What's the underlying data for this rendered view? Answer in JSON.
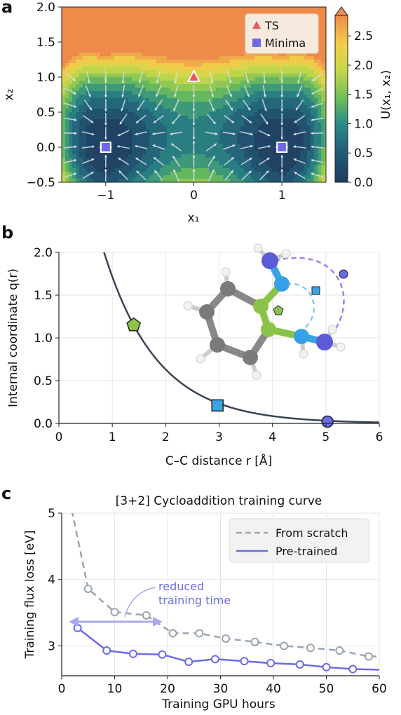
{
  "panels": {
    "a": "a",
    "b": "b",
    "c": "c"
  },
  "chart_data": [
    {
      "type": "heatmap",
      "panel": "a",
      "xlabel": "x₁",
      "ylabel": "x₂",
      "xlim": [
        -1.5,
        1.5
      ],
      "ylim": [
        -0.5,
        2.0
      ],
      "xticks": [
        "−1",
        "0",
        "1"
      ],
      "xtick_values": [
        -1,
        0,
        1
      ],
      "yticks": [
        "−0.5",
        "0.0",
        "0.5",
        "1.0",
        "1.5",
        "2.0"
      ],
      "ytick_values": [
        -0.5,
        0.0,
        0.5,
        1.0,
        1.5,
        2.0
      ],
      "colorbar": {
        "label": "U(x₁, x₂)",
        "range": [
          0.0,
          2.85
        ],
        "ticks": [
          "0.0",
          "0.5",
          "1.0",
          "1.5",
          "2.0",
          "2.5"
        ],
        "tick_values": [
          0.0,
          0.5,
          1.0,
          1.5,
          2.0,
          2.5
        ]
      },
      "markers": [
        {
          "name": "TS",
          "x": 0.0,
          "y": 1.0,
          "color": "#e8585f",
          "shape": "triangle"
        },
        {
          "name": "Minima",
          "x": -1.0,
          "y": 0.0,
          "color": "#6b6be8",
          "shape": "square"
        },
        {
          "name": "Minima",
          "x": 1.0,
          "y": 0.0,
          "color": "#6b6be8",
          "shape": "square"
        }
      ],
      "legend": {
        "position": "top-right",
        "entries": [
          "TS",
          "Minima"
        ]
      }
    },
    {
      "type": "line",
      "panel": "b",
      "xlabel": "C–C distance r [Å]",
      "ylabel": "Internal coordinate q(r)",
      "xlim": [
        0,
        6
      ],
      "ylim": [
        0,
        2.0
      ],
      "xticks": [
        "0",
        "1",
        "2",
        "3",
        "4",
        "5",
        "6"
      ],
      "yticks": [
        "0.0",
        "0.5",
        "1.0",
        "1.5",
        "2.0"
      ],
      "curve": "q(r) = exp(-(r - 1.4)) * 1.15",
      "points": [
        {
          "x": 1.4,
          "y": 1.15,
          "shape": "pentagon",
          "color": "#8bc34a"
        },
        {
          "x": 2.97,
          "y": 0.21,
          "shape": "square",
          "color": "#3aa3e3"
        },
        {
          "x": 5.03,
          "y": 0.02,
          "shape": "circle",
          "color": "#6b6be8"
        }
      ]
    },
    {
      "type": "line",
      "panel": "c",
      "title": "[3+2] Cycloaddition training curve",
      "xlabel": "Training GPU hours",
      "ylabel": "Training flux loss [eV]",
      "xlim": [
        0,
        60
      ],
      "ylim": [
        2.55,
        5.0
      ],
      "xticks": [
        "0",
        "10",
        "20",
        "30",
        "40",
        "50",
        "60"
      ],
      "yticks": [
        "3",
        "4",
        "5"
      ],
      "legend": {
        "position": "top-right"
      },
      "annotation": {
        "line1": "reduced",
        "line2": "training time"
      },
      "series": [
        {
          "name": "From scratch",
          "style": "dashed",
          "color": "#9aa5b1",
          "x": [
            1.5,
            5,
            10,
            16,
            21,
            26,
            31,
            36.5,
            42,
            47,
            52.5,
            58,
            61
          ],
          "y": [
            5.2,
            3.86,
            3.51,
            3.46,
            3.19,
            3.19,
            3.11,
            3.06,
            3.0,
            2.97,
            2.93,
            2.84,
            2.84
          ]
        },
        {
          "name": "Pre-trained",
          "style": "solid",
          "color": "#6b6be8",
          "x": [
            3,
            8.5,
            13.5,
            19,
            24,
            29,
            34.5,
            39.5,
            45,
            50,
            55,
            60.5
          ],
          "y": [
            3.27,
            2.93,
            2.88,
            2.87,
            2.76,
            2.8,
            2.77,
            2.74,
            2.72,
            2.68,
            2.65,
            2.64
          ]
        }
      ]
    }
  ]
}
